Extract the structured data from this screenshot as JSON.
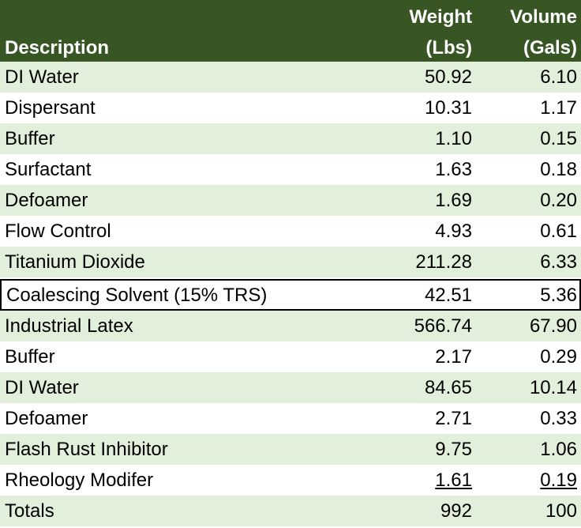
{
  "header": {
    "description": "Description",
    "weight_line1": "Weight",
    "weight_line2": "(Lbs)",
    "volume_line1": "Volume",
    "volume_line2": "(Gals)"
  },
  "rows": [
    {
      "description": "DI Water",
      "weight": "50.92",
      "volume": "6.10"
    },
    {
      "description": "Dispersant",
      "weight": "10.31",
      "volume": "1.17"
    },
    {
      "description": "Buffer",
      "weight": "1.10",
      "volume": "0.15"
    },
    {
      "description": "Surfactant",
      "weight": "1.63",
      "volume": "0.18"
    },
    {
      "description": "Defoamer",
      "weight": "1.69",
      "volume": "0.20"
    },
    {
      "description": "Flow Control",
      "weight": "4.93",
      "volume": "0.61"
    },
    {
      "description": "Titanium Dioxide",
      "weight": "211.28",
      "volume": "6.33"
    },
    {
      "description": "Coalescing Solvent (15% TRS)",
      "weight": "42.51",
      "volume": "5.36"
    },
    {
      "description": "Industrial Latex",
      "weight": "566.74",
      "volume": "67.90"
    },
    {
      "description": "Buffer",
      "weight": "2.17",
      "volume": "0.29"
    },
    {
      "description": "DI Water",
      "weight": "84.65",
      "volume": "10.14"
    },
    {
      "description": "Defoamer",
      "weight": "2.71",
      "volume": "0.33"
    },
    {
      "description": "Flash Rust Inhibitor",
      "weight": "9.75",
      "volume": "1.06"
    },
    {
      "description": "Rheology Modifer",
      "weight": "1.61",
      "volume": "0.19"
    }
  ],
  "totals": {
    "label": "Totals",
    "weight": "992",
    "volume": "100"
  },
  "colors": {
    "header_bg": "#375623",
    "band": "#e2efda",
    "highlight_border": "#000000"
  }
}
